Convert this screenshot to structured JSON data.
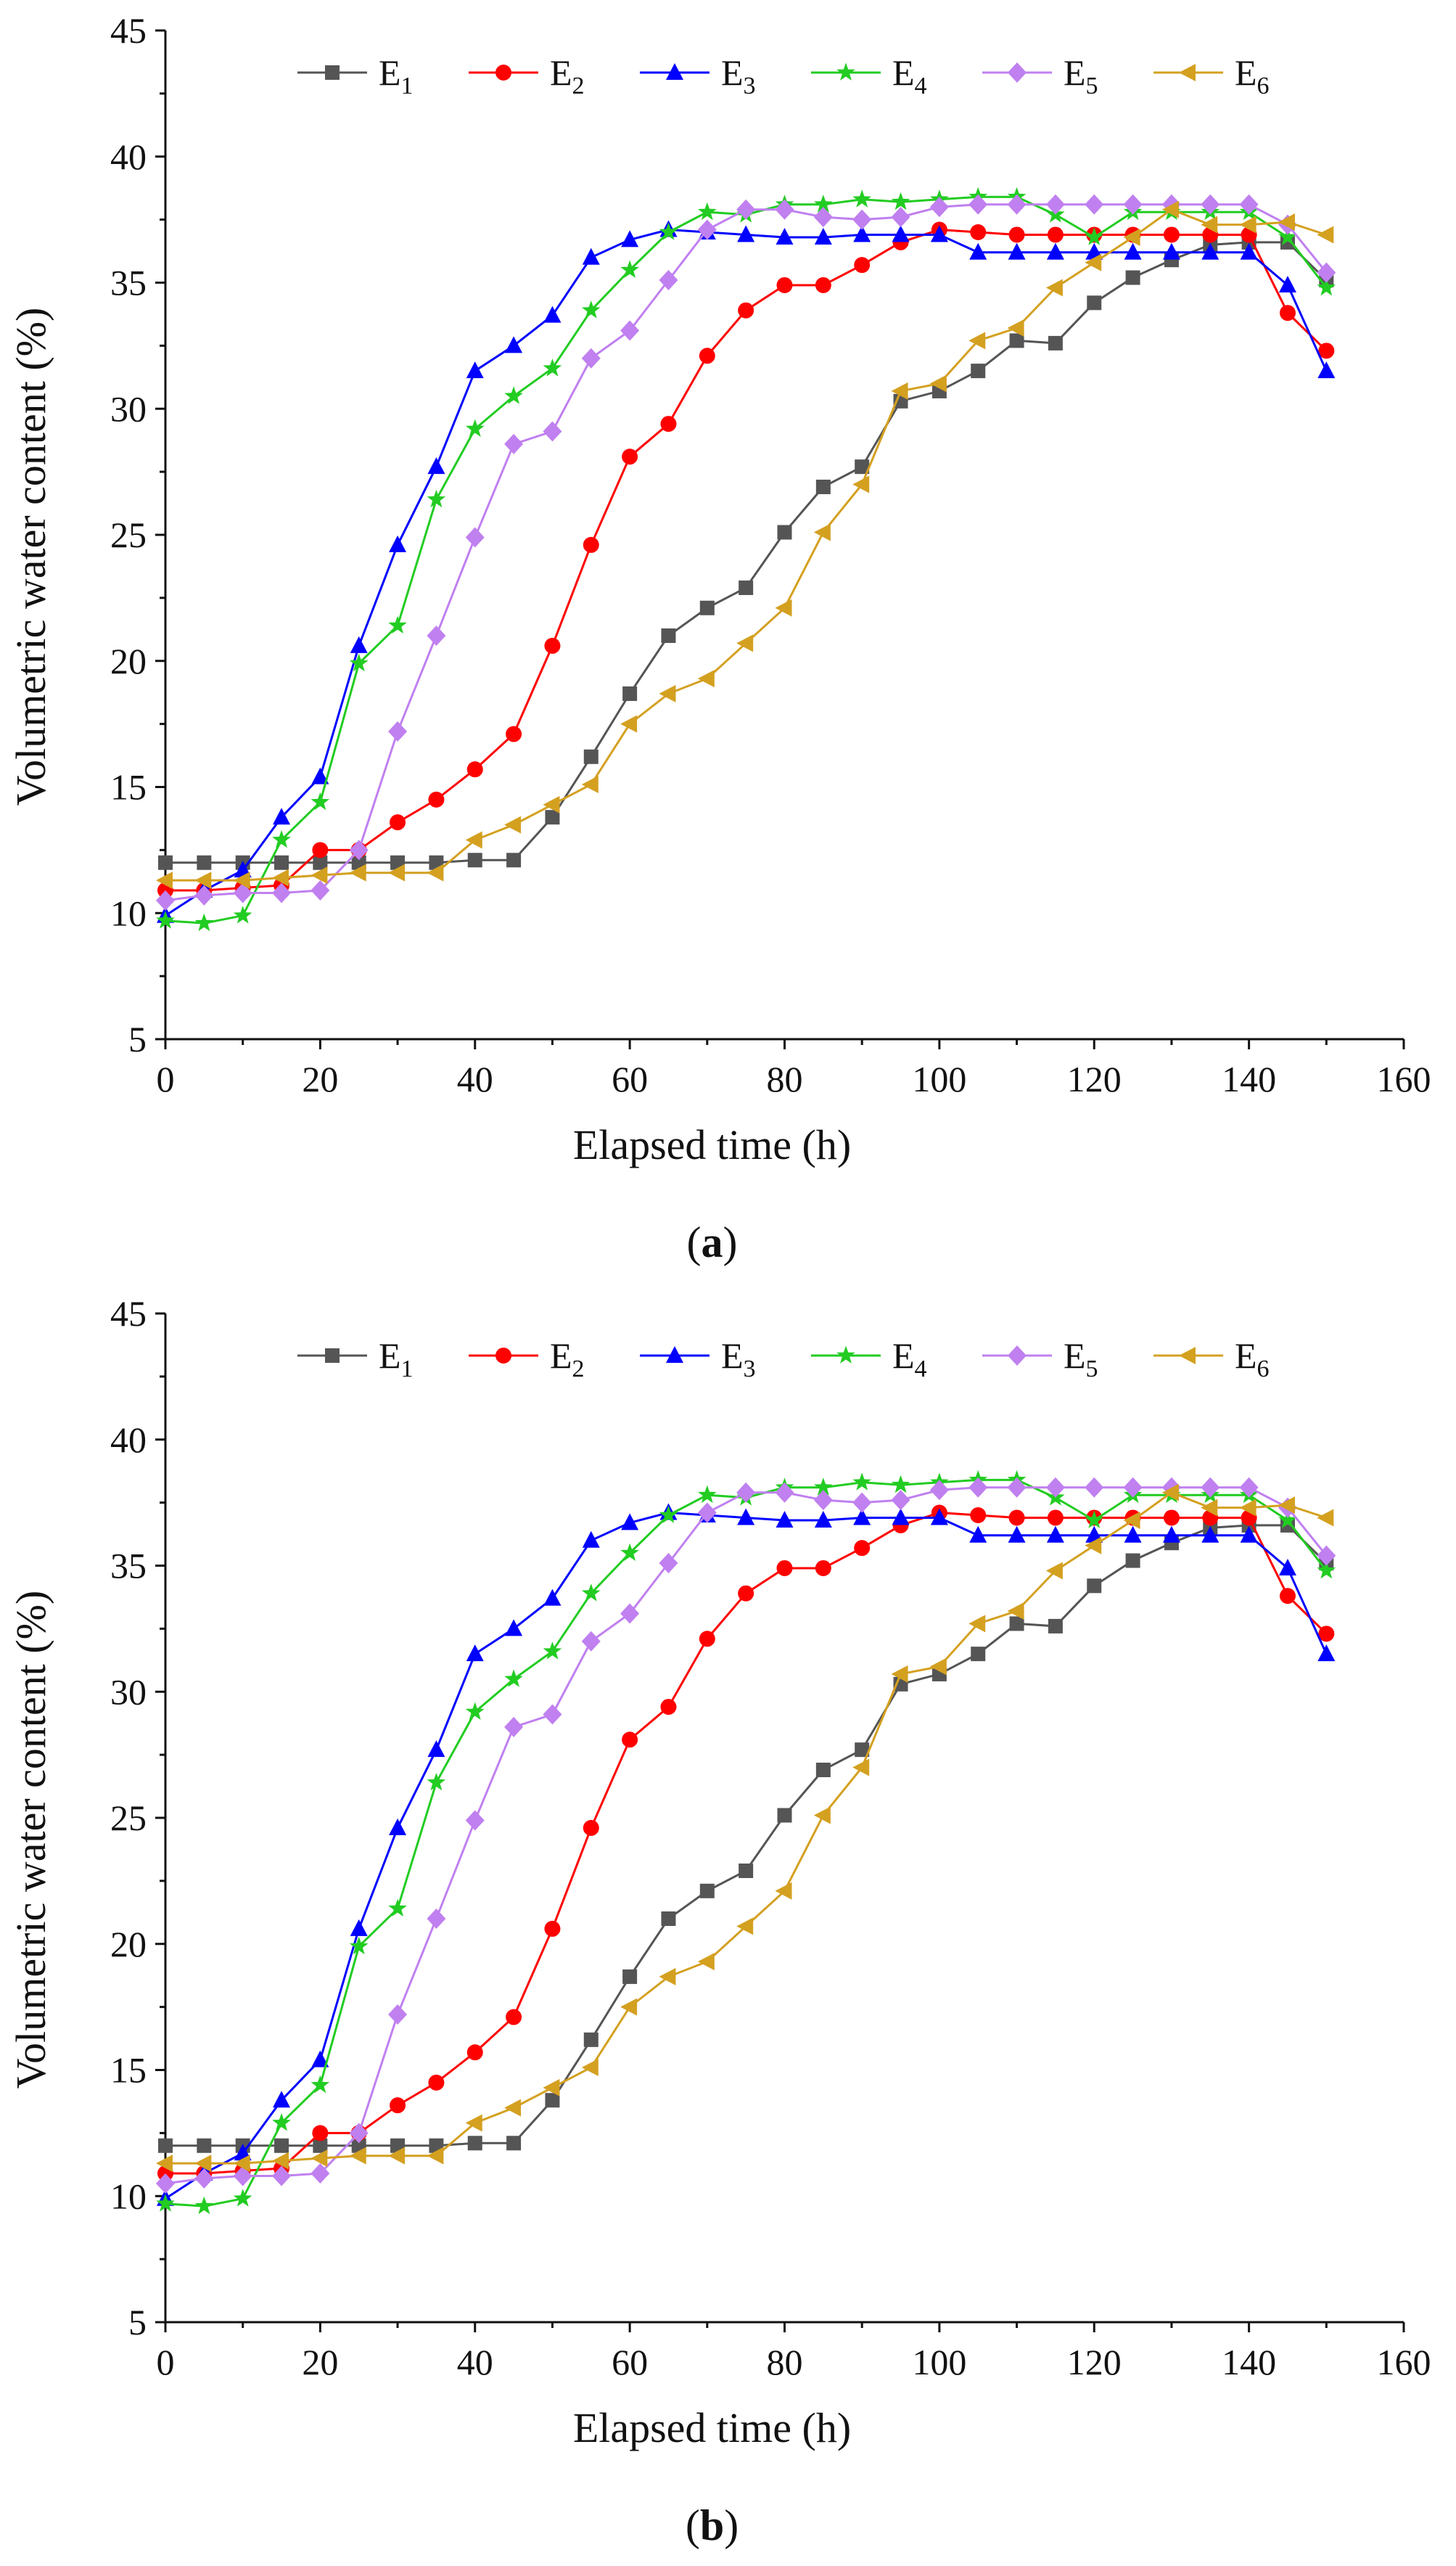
{
  "chart_data": [
    {
      "type": "line",
      "panel_label": "a",
      "xlabel": "Elapsed time (h)",
      "ylabel": "Volumetric water content (%)",
      "xlim": [
        0,
        160
      ],
      "ylim": [
        5,
        45
      ],
      "xticks": [
        0,
        20,
        40,
        60,
        80,
        100,
        120,
        140,
        160
      ],
      "yticks": [
        5,
        10,
        15,
        20,
        25,
        30,
        35,
        40,
        45
      ],
      "grid": false,
      "legend_position": "top",
      "x": [
        0,
        5,
        10,
        15,
        20,
        25,
        30,
        35,
        40,
        45,
        50,
        55,
        60,
        65,
        70,
        75,
        80,
        85,
        90,
        95,
        100,
        105,
        110,
        115,
        120,
        125,
        130,
        135,
        140,
        145,
        150
      ],
      "series": [
        {
          "name": "E",
          "sub": "1",
          "color": "#555555",
          "marker": "square",
          "values": [
            12.0,
            12.0,
            12.0,
            12.0,
            12.0,
            12.0,
            12.0,
            12.0,
            12.1,
            12.1,
            13.8,
            16.2,
            18.7,
            21.0,
            22.1,
            22.9,
            25.1,
            26.9,
            27.7,
            30.3,
            30.7,
            31.5,
            32.7,
            32.6,
            34.2,
            35.2,
            35.9,
            36.5,
            36.6,
            36.6,
            35.1
          ]
        },
        {
          "name": "E",
          "sub": "2",
          "color": "#FF0000",
          "marker": "circle",
          "values": [
            10.9,
            10.9,
            11.0,
            11.1,
            12.5,
            12.5,
            13.6,
            14.5,
            15.7,
            17.1,
            20.6,
            24.6,
            28.1,
            29.4,
            32.1,
            33.9,
            34.9,
            34.9,
            35.7,
            36.6,
            37.1,
            37.0,
            36.9,
            36.9,
            36.9,
            36.9,
            36.9,
            36.9,
            36.9,
            33.8,
            32.3
          ]
        },
        {
          "name": "E",
          "sub": "3",
          "color": "#0000FF",
          "marker": "triangle",
          "values": [
            9.9,
            10.9,
            11.7,
            13.8,
            15.4,
            20.6,
            24.6,
            27.7,
            31.5,
            32.5,
            33.7,
            36.0,
            36.7,
            37.1,
            37.0,
            36.9,
            36.8,
            36.8,
            36.9,
            36.9,
            36.9,
            36.2,
            36.2,
            36.2,
            36.2,
            36.2,
            36.2,
            36.2,
            36.2,
            34.9,
            31.5
          ]
        },
        {
          "name": "E",
          "sub": "4",
          "color": "#22CC22",
          "marker": "star",
          "values": [
            9.7,
            9.6,
            9.9,
            12.9,
            14.4,
            19.9,
            21.4,
            26.4,
            29.2,
            30.5,
            31.6,
            33.9,
            35.5,
            37.0,
            37.8,
            37.7,
            38.1,
            38.1,
            38.3,
            38.2,
            38.3,
            38.4,
            38.4,
            37.7,
            36.8,
            37.8,
            37.8,
            37.8,
            37.8,
            36.8,
            34.8
          ]
        },
        {
          "name": "E",
          "sub": "5",
          "color": "#C080F0",
          "marker": "diamond",
          "values": [
            10.5,
            10.7,
            10.8,
            10.8,
            10.9,
            12.5,
            17.2,
            21.0,
            24.9,
            28.6,
            29.1,
            32.0,
            33.1,
            35.1,
            37.1,
            37.9,
            37.9,
            37.6,
            37.5,
            37.6,
            38.0,
            38.1,
            38.1,
            38.1,
            38.1,
            38.1,
            38.1,
            38.1,
            38.1,
            37.3,
            35.4
          ]
        },
        {
          "name": "E",
          "sub": "6",
          "color": "#D4A020",
          "marker": "left-triangle",
          "values": [
            11.3,
            11.3,
            11.3,
            11.4,
            11.5,
            11.6,
            11.6,
            11.6,
            12.9,
            13.5,
            14.3,
            15.1,
            17.5,
            18.7,
            19.3,
            20.7,
            22.1,
            25.1,
            27.0,
            30.7,
            31.0,
            32.7,
            33.2,
            34.8,
            35.8,
            36.8,
            37.9,
            37.3,
            37.3,
            37.4,
            36.9
          ]
        }
      ]
    },
    {
      "type": "line",
      "panel_label": "b",
      "xlabel": "Elapsed time (h)",
      "ylabel": "Volumetric water content (%)",
      "xlim": [
        0,
        160
      ],
      "ylim": [
        5,
        45
      ],
      "xticks": [
        0,
        20,
        40,
        60,
        80,
        100,
        120,
        140,
        160
      ],
      "yticks": [
        5,
        10,
        15,
        20,
        25,
        30,
        35,
        40,
        45
      ],
      "grid": false,
      "legend_position": "top",
      "x": [
        0,
        5,
        10,
        15,
        20,
        25,
        30,
        35,
        40,
        45,
        50,
        55,
        60,
        65,
        70,
        75,
        80,
        85,
        90,
        95,
        100,
        105,
        110,
        115,
        120,
        125,
        130,
        135,
        140,
        145,
        150
      ],
      "series": [
        {
          "name": "E",
          "sub": "1",
          "color": "#555555",
          "marker": "square",
          "values": [
            12.0,
            12.0,
            12.0,
            12.0,
            12.0,
            12.0,
            12.0,
            12.0,
            12.1,
            12.1,
            13.8,
            16.2,
            18.7,
            21.0,
            22.1,
            22.9,
            25.1,
            26.9,
            27.7,
            30.3,
            30.7,
            31.5,
            32.7,
            32.6,
            34.2,
            35.2,
            35.9,
            36.5,
            36.6,
            36.6,
            35.1
          ]
        },
        {
          "name": "E",
          "sub": "2",
          "color": "#FF0000",
          "marker": "circle",
          "values": [
            10.9,
            10.9,
            11.0,
            11.1,
            12.5,
            12.5,
            13.6,
            14.5,
            15.7,
            17.1,
            20.6,
            24.6,
            28.1,
            29.4,
            32.1,
            33.9,
            34.9,
            34.9,
            35.7,
            36.6,
            37.1,
            37.0,
            36.9,
            36.9,
            36.9,
            36.9,
            36.9,
            36.9,
            36.9,
            33.8,
            32.3
          ]
        },
        {
          "name": "E",
          "sub": "3",
          "color": "#0000FF",
          "marker": "triangle",
          "values": [
            9.9,
            10.9,
            11.7,
            13.8,
            15.4,
            20.6,
            24.6,
            27.7,
            31.5,
            32.5,
            33.7,
            36.0,
            36.7,
            37.1,
            37.0,
            36.9,
            36.8,
            36.8,
            36.9,
            36.9,
            36.9,
            36.2,
            36.2,
            36.2,
            36.2,
            36.2,
            36.2,
            36.2,
            36.2,
            34.9,
            31.5
          ]
        },
        {
          "name": "E",
          "sub": "4",
          "color": "#22CC22",
          "marker": "star",
          "values": [
            9.7,
            9.6,
            9.9,
            12.9,
            14.4,
            19.9,
            21.4,
            26.4,
            29.2,
            30.5,
            31.6,
            33.9,
            35.5,
            37.0,
            37.8,
            37.7,
            38.1,
            38.1,
            38.3,
            38.2,
            38.3,
            38.4,
            38.4,
            37.7,
            36.8,
            37.8,
            37.8,
            37.8,
            37.8,
            36.8,
            34.8
          ]
        },
        {
          "name": "E",
          "sub": "5",
          "color": "#C080F0",
          "marker": "diamond",
          "values": [
            10.5,
            10.7,
            10.8,
            10.8,
            10.9,
            12.5,
            17.2,
            21.0,
            24.9,
            28.6,
            29.1,
            32.0,
            33.1,
            35.1,
            37.1,
            37.9,
            37.9,
            37.6,
            37.5,
            37.6,
            38.0,
            38.1,
            38.1,
            38.1,
            38.1,
            38.1,
            38.1,
            38.1,
            38.1,
            37.3,
            35.4
          ]
        },
        {
          "name": "E",
          "sub": "6",
          "color": "#D4A020",
          "marker": "left-triangle",
          "values": [
            11.3,
            11.3,
            11.3,
            11.4,
            11.5,
            11.6,
            11.6,
            11.6,
            12.9,
            13.5,
            14.3,
            15.1,
            17.5,
            18.7,
            19.3,
            20.7,
            22.1,
            25.1,
            27.0,
            30.7,
            31.0,
            32.7,
            33.2,
            34.8,
            35.8,
            36.8,
            37.9,
            37.3,
            37.3,
            37.4,
            36.9
          ]
        }
      ]
    }
  ]
}
